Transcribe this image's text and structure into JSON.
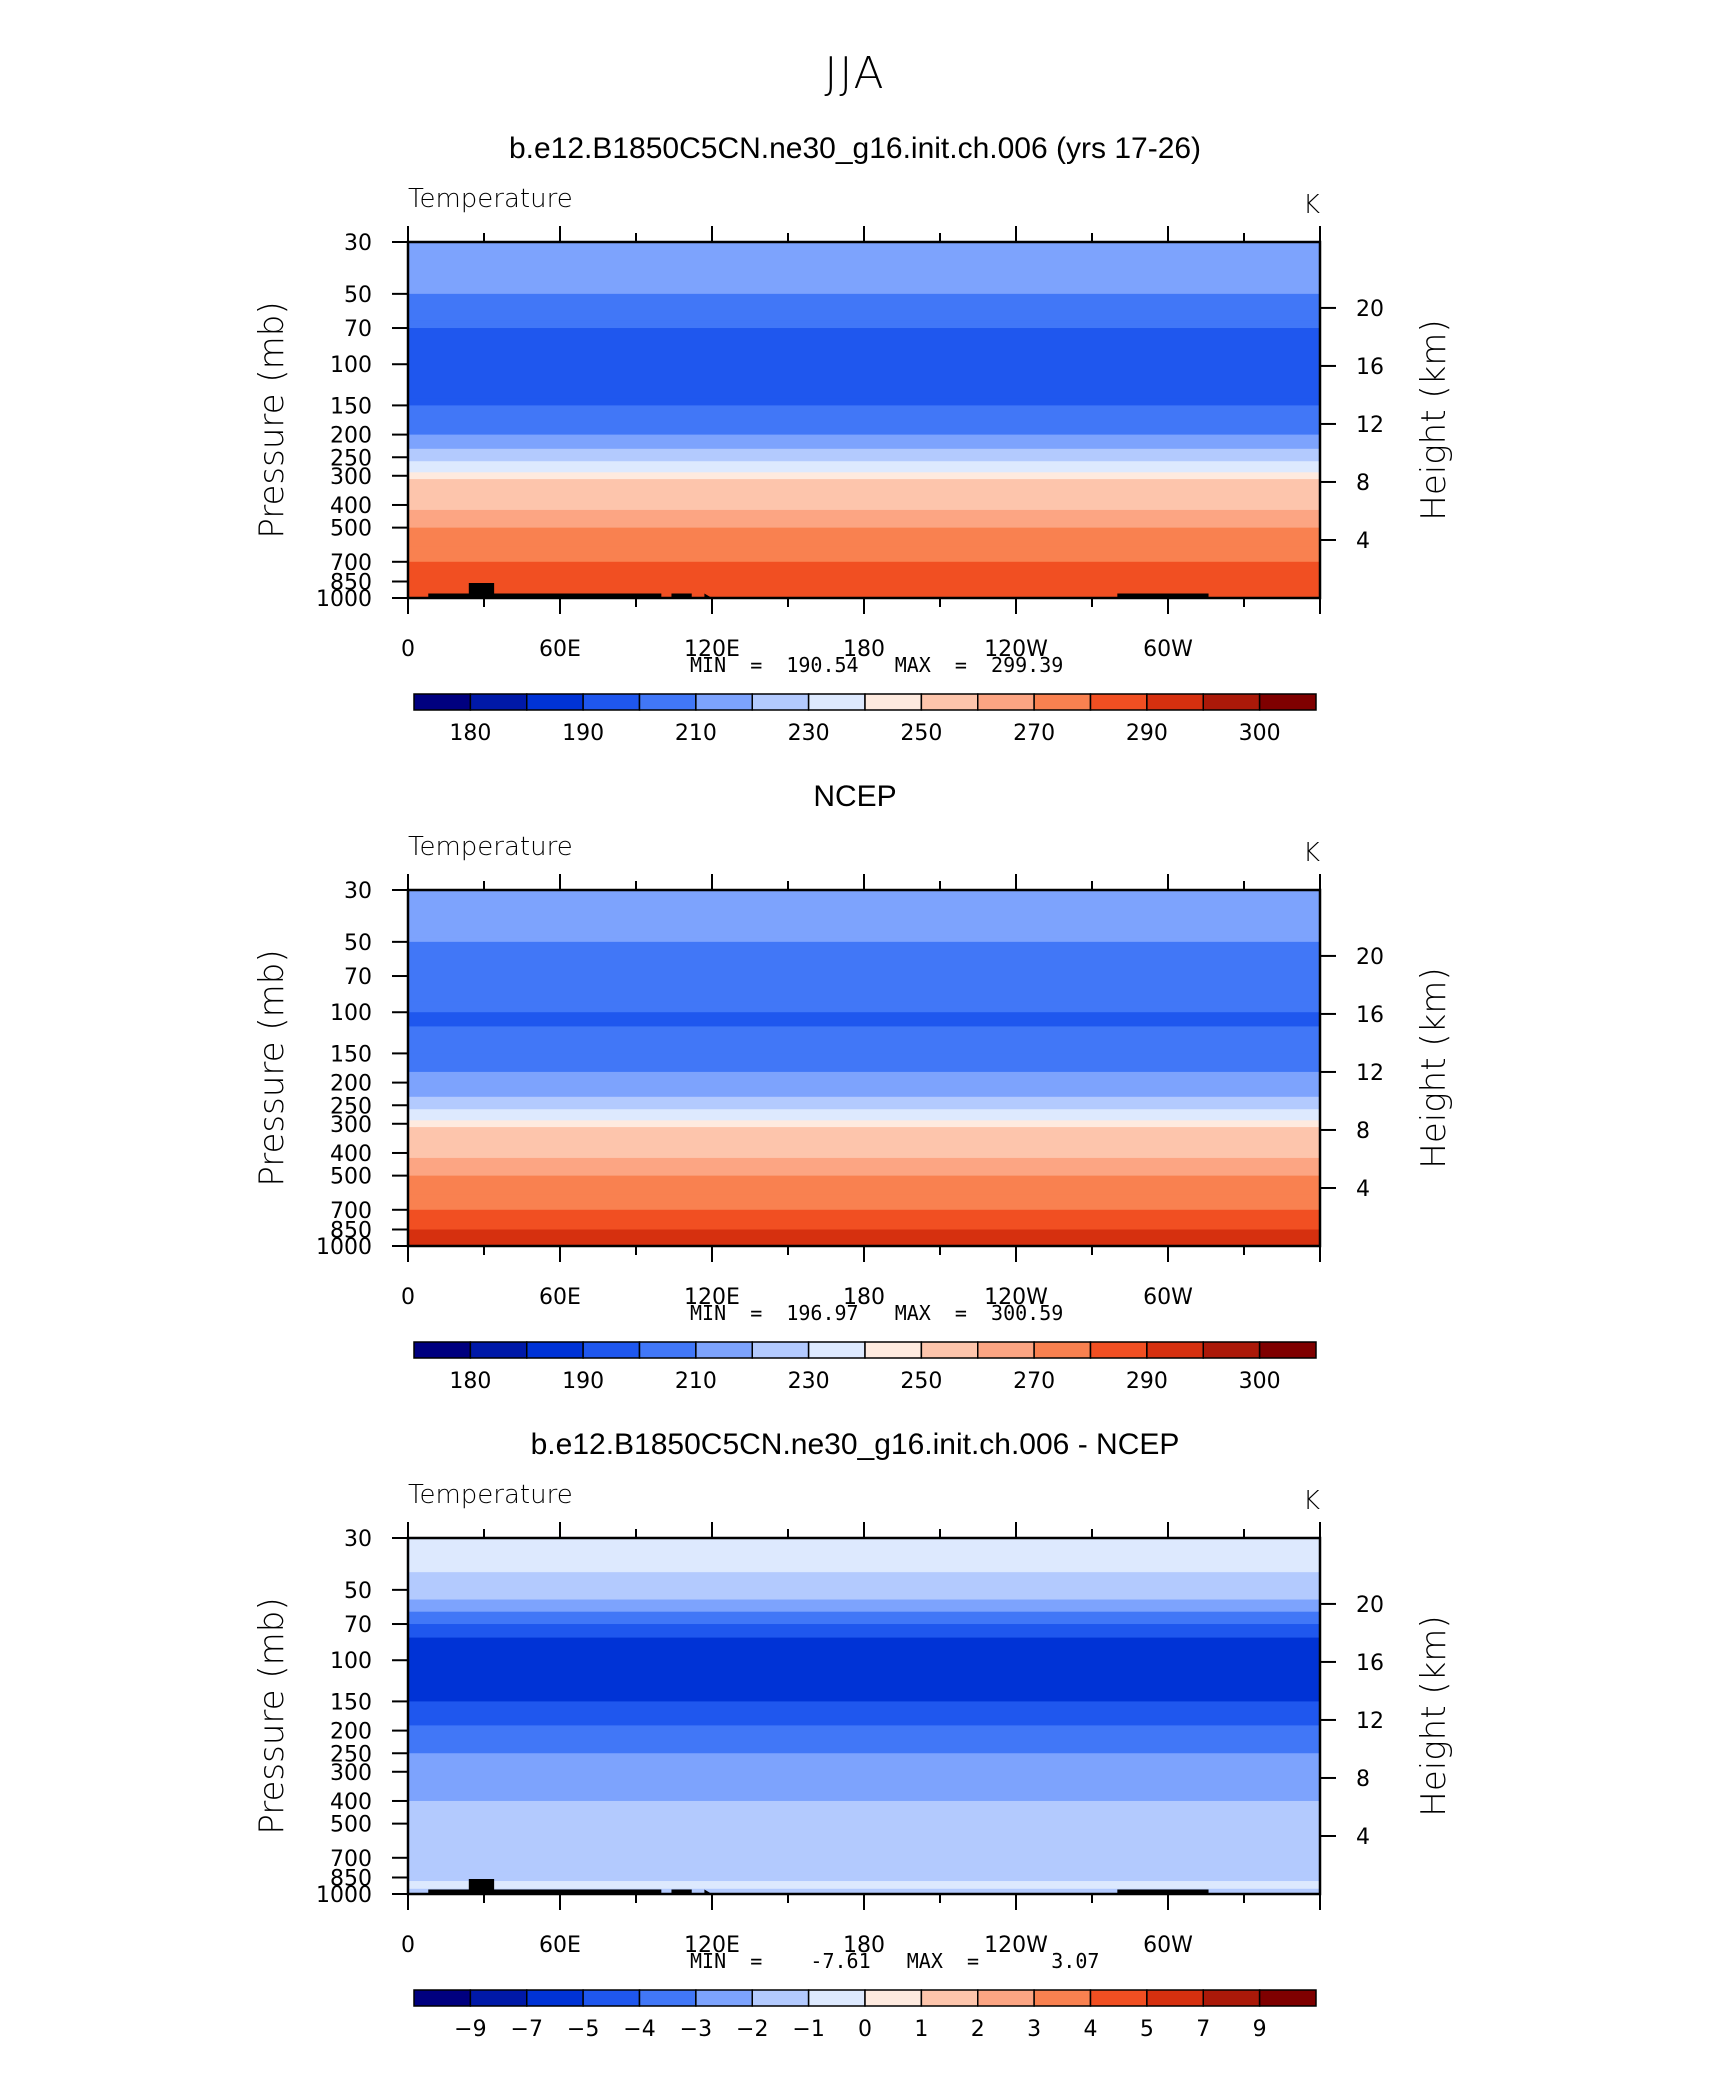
{
  "figure": {
    "title": "JJA"
  },
  "colors": {
    "abs_levels": [
      "#00007f",
      "#0019a8",
      "#0033d6",
      "#1f57ee",
      "#4177f7",
      "#7da3fd",
      "#b3cafe",
      "#dde9fe",
      "#feeadf",
      "#fdc5ac",
      "#fca583",
      "#f98150",
      "#f14f22",
      "#d6300f",
      "#ab1909",
      "#7f0000"
    ],
    "diff_levels": [
      "#00007f",
      "#0019a8",
      "#0033d6",
      "#1f57ee",
      "#4177f7",
      "#7da3fd",
      "#b3cafe",
      "#dde9fe",
      "#feeadf",
      "#fdc5ac",
      "#fca583",
      "#f98150",
      "#f14f22",
      "#d6300f",
      "#ab1909",
      "#7f0000"
    ]
  },
  "chart_data": [
    {
      "type": "heatmap",
      "title": "b.e12.B1850C5CN.ne30_g16.init.ch.006 (yrs 17-26)",
      "variable": "Temperature",
      "units": "K",
      "ylabel": "Pressure  (mb)",
      "ylabel_right": "Height  (km)",
      "x_ticks": [
        "0",
        "60E",
        "120E",
        "180",
        "120W",
        "60W"
      ],
      "x_tick_lon": [
        0,
        60,
        120,
        180,
        240,
        300
      ],
      "xlim": [
        0,
        360
      ],
      "y_ticks": [
        30,
        50,
        70,
        100,
        150,
        200,
        250,
        300,
        400,
        500,
        700,
        850,
        1000
      ],
      "ylim": [
        1000,
        30
      ],
      "y_scale": "log",
      "height_ticks": [
        4,
        8,
        12,
        16,
        20
      ],
      "min_label": "MIN  =  190.54   MAX  =  299.39",
      "min": 190.54,
      "max": 299.39,
      "colorbar": [
        "180",
        "190",
        "210",
        "230",
        "250",
        "270",
        "290",
        "300"
      ],
      "colorbar_kind": "abs",
      "profile": [
        [
          30,
          213
        ],
        [
          45,
          213
        ],
        [
          50,
          204
        ],
        [
          65,
          204
        ],
        [
          70,
          196
        ],
        [
          140,
          196
        ],
        [
          150,
          204
        ],
        [
          175,
          204
        ],
        [
          200,
          213
        ],
        [
          230,
          222
        ],
        [
          260,
          235
        ],
        [
          290,
          244
        ],
        [
          310,
          250
        ],
        [
          360,
          256
        ],
        [
          420,
          263
        ],
        [
          500,
          270
        ],
        [
          600,
          277
        ],
        [
          700,
          283
        ],
        [
          850,
          289
        ],
        [
          1000,
          294
        ]
      ],
      "topography": [
        [
          8,
          18
        ],
        [
          15,
          18
        ],
        [
          24,
          18
        ],
        [
          24,
          60
        ],
        [
          34,
          60
        ],
        [
          34,
          18
        ],
        [
          40,
          18
        ],
        [
          100,
          18
        ],
        [
          100,
          0
        ],
        [
          104,
          0
        ],
        [
          104,
          18
        ],
        [
          112,
          18
        ],
        [
          112,
          0
        ],
        [
          117,
          0
        ],
        [
          117,
          18
        ],
        [
          120,
          0
        ],
        [
          280,
          0
        ],
        [
          280,
          18
        ],
        [
          287,
          18
        ],
        [
          298,
          18
        ],
        [
          310,
          18
        ],
        [
          316,
          18
        ],
        [
          316,
          0
        ]
      ]
    },
    {
      "type": "heatmap",
      "title": "NCEP",
      "variable": "Temperature",
      "units": "K",
      "ylabel": "Pressure  (mb)",
      "ylabel_right": "Height  (km)",
      "x_ticks": [
        "0",
        "60E",
        "120E",
        "180",
        "120W",
        "60W"
      ],
      "x_tick_lon": [
        0,
        60,
        120,
        180,
        240,
        300
      ],
      "xlim": [
        0,
        360
      ],
      "y_ticks": [
        30,
        50,
        70,
        100,
        150,
        200,
        250,
        300,
        400,
        500,
        700,
        850,
        1000
      ],
      "ylim": [
        1000,
        30
      ],
      "y_scale": "log",
      "height_ticks": [
        4,
        8,
        12,
        16,
        20
      ],
      "min_label": "MIN  =  196.97   MAX  =  300.59",
      "min": 196.97,
      "max": 300.59,
      "colorbar": [
        "180",
        "190",
        "210",
        "230",
        "250",
        "270",
        "290",
        "300"
      ],
      "colorbar_kind": "abs",
      "profile": [
        [
          30,
          213
        ],
        [
          48,
          213
        ],
        [
          50,
          204
        ],
        [
          90,
          204
        ],
        [
          100,
          199
        ],
        [
          115,
          204
        ],
        [
          140,
          204
        ],
        [
          150,
          204
        ],
        [
          180,
          213
        ],
        [
          230,
          222
        ],
        [
          260,
          235
        ],
        [
          290,
          244
        ],
        [
          310,
          250
        ],
        [
          360,
          256
        ],
        [
          420,
          263
        ],
        [
          500,
          270
        ],
        [
          600,
          277
        ],
        [
          700,
          283
        ],
        [
          850,
          290
        ],
        [
          1000,
          296
        ]
      ],
      "topography": []
    },
    {
      "type": "heatmap",
      "title": "b.e12.B1850C5CN.ne30_g16.init.ch.006 - NCEP",
      "variable": "Temperature",
      "units": "K",
      "ylabel": "Pressure  (mb)",
      "ylabel_right": "Height  (km)",
      "x_ticks": [
        "0",
        "60E",
        "120E",
        "180",
        "120W",
        "60W"
      ],
      "x_tick_lon": [
        0,
        60,
        120,
        180,
        240,
        300
      ],
      "xlim": [
        0,
        360
      ],
      "y_ticks": [
        30,
        50,
        70,
        100,
        150,
        200,
        250,
        300,
        400,
        500,
        700,
        850,
        1000
      ],
      "ylim": [
        1000,
        30
      ],
      "y_scale": "log",
      "height_ticks": [
        4,
        8,
        12,
        16,
        20
      ],
      "min_label": "MIN  =    -7.61   MAX  =      3.07",
      "min": -7.61,
      "max": 3.07,
      "colorbar": [
        "-9",
        "-7",
        "-5",
        "-4",
        "-3",
        "-2",
        "-1",
        "0",
        "1",
        "2",
        "3",
        "4",
        "5",
        "7",
        "9"
      ],
      "colorbar_kind": "diff",
      "profile": [
        [
          30,
          -0.5
        ],
        [
          38,
          -0.5
        ],
        [
          42,
          -1.5
        ],
        [
          55,
          -2.5
        ],
        [
          62,
          -3.5
        ],
        [
          70,
          -4.5
        ],
        [
          80,
          -6
        ],
        [
          140,
          -6
        ],
        [
          150,
          -4.5
        ],
        [
          190,
          -3.5
        ],
        [
          250,
          -2.5
        ],
        [
          400,
          -1.5
        ],
        [
          500,
          -1.5
        ],
        [
          650,
          -1.5
        ],
        [
          800,
          -1.5
        ],
        [
          880,
          -0.5
        ],
        [
          950,
          -1.5
        ],
        [
          1000,
          -2.5
        ]
      ],
      "topography": [
        [
          8,
          18
        ],
        [
          15,
          18
        ],
        [
          24,
          18
        ],
        [
          24,
          60
        ],
        [
          34,
          60
        ],
        [
          34,
          18
        ],
        [
          40,
          18
        ],
        [
          100,
          18
        ],
        [
          100,
          0
        ],
        [
          104,
          0
        ],
        [
          104,
          18
        ],
        [
          112,
          18
        ],
        [
          112,
          0
        ],
        [
          117,
          0
        ],
        [
          117,
          18
        ],
        [
          120,
          0
        ],
        [
          280,
          0
        ],
        [
          280,
          18
        ],
        [
          287,
          18
        ],
        [
          298,
          18
        ],
        [
          310,
          18
        ],
        [
          316,
          18
        ],
        [
          316,
          0
        ]
      ]
    }
  ]
}
